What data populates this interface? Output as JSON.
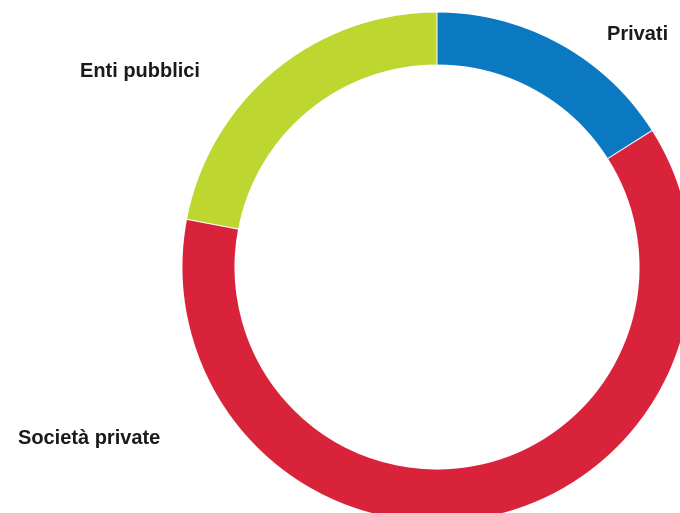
{
  "chart_data": {
    "type": "pie",
    "donut": true,
    "title": "",
    "legend": "none",
    "slices": [
      {
        "label": "Privati",
        "value": 16,
        "color": "#0a79c1"
      },
      {
        "label": "Società private",
        "value": 62,
        "color": "#d9233b"
      },
      {
        "label": "Enti pubblici",
        "value": 22,
        "color": "#bed630"
      }
    ]
  }
}
